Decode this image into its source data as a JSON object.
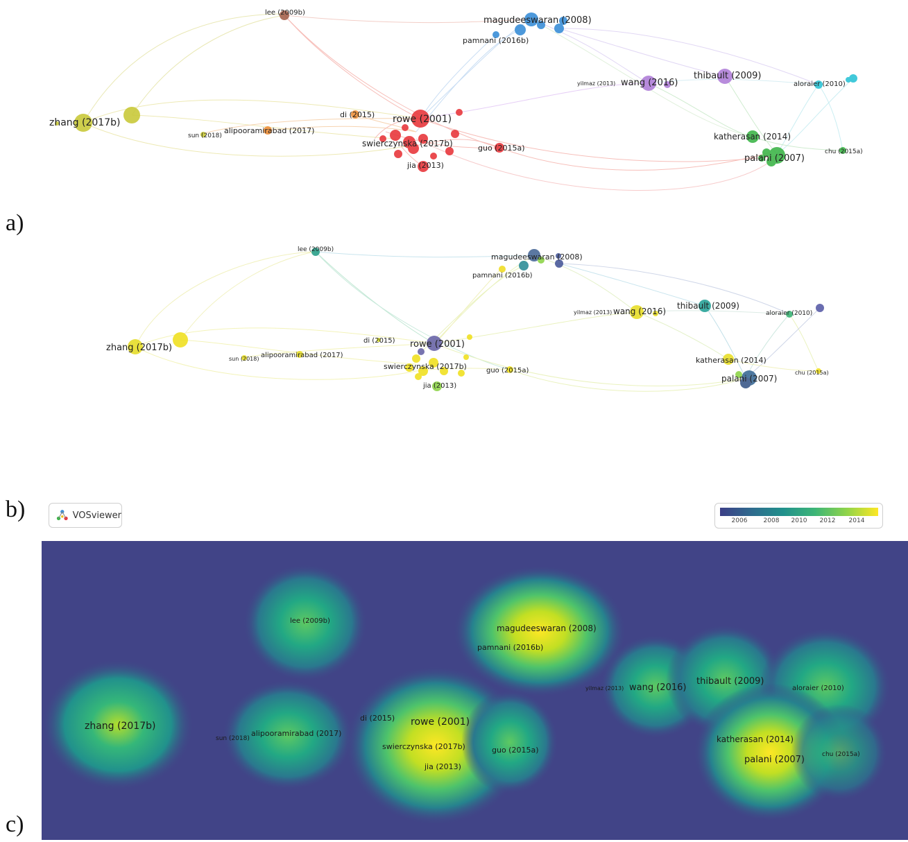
{
  "panels": [
    {
      "letter": "a)"
    },
    {
      "letter": "b)"
    },
    {
      "letter": "c)"
    }
  ],
  "node_labels": {
    "lee": "lee (2009b)",
    "magudeeswaran": "magudeeswaran (2008)",
    "pamnani": "pamnani (2016b)",
    "yilmaz": "yilmaz (2013)",
    "wang": "wang (2016)",
    "thibault": "thibault (2009)",
    "aloraier": "aloraier (2010)",
    "zhang": "zhang (2017b)",
    "sun": "sun (2018)",
    "alipooramirabad": "alipooramirabad (2017)",
    "di": "di (2015)",
    "rowe": "rowe (2001)",
    "swierczynska": "swierczynska (2017b)",
    "guo": "guo (2015a)",
    "jia": "jia (2013)",
    "katherasan": "katherasan (2014)",
    "palani": "palani (2007)",
    "chu": "chu (2015a)"
  },
  "overlay_legend": {
    "app_name": "VOSviewer",
    "ticks": [
      "2006",
      "2008",
      "2010",
      "2012",
      "2014"
    ],
    "colors": [
      "#3c3f87",
      "#2f6b8e",
      "#21918c",
      "#3db577",
      "#8fd44a",
      "#fde725"
    ]
  },
  "cluster_colors": {
    "red": "#e8383d",
    "blue": "#3a8fd8",
    "purple": "#b07fd8",
    "green": "#3fb54a",
    "cyan": "#2ec4d6",
    "yellow": "#c9c93a",
    "orange": "#f0913a",
    "brown": "#a5634e"
  },
  "density_colors": {
    "background": "#414487",
    "mid": "#22a884",
    "high": "#fde725"
  }
}
